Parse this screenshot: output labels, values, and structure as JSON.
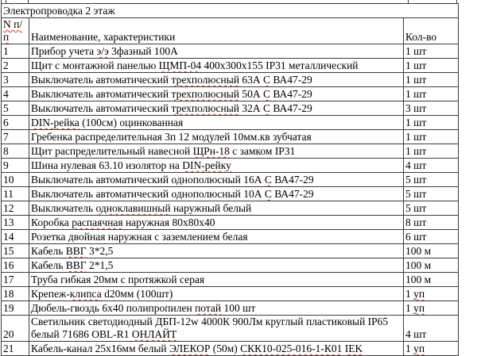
{
  "table": {
    "title": "Электропроводка 2 этаж",
    "columns": {
      "num": "N п/п",
      "name": "Наименование, характеристики",
      "qty": "Кол-во"
    },
    "rows": [
      {
        "num": "1",
        "name": "Прибор учета э/э 3фазный 100А",
        "qty": "1 шт"
      },
      {
        "num": "2",
        "name": "Щит с монтажной панелью ЩМП-04 400x300x155 IP31 металлический",
        "qty": "1 шт"
      },
      {
        "num": "3",
        "name": "Выключатель автоматический трехполюсный 63А С ВА47-29",
        "qty": "1 шт"
      },
      {
        "num": "4",
        "name": "Выключатель автоматический трехполюсный 50А С ВА47-29",
        "qty": "1 шт"
      },
      {
        "num": "5",
        "name": "Выключатель автоматический трехполюсный 32А С ВА47-29",
        "qty": "3 шт"
      },
      {
        "num": "6",
        "name": "DIN-рейка (100см) оцинкованная",
        "qty": "1 шт"
      },
      {
        "num": "7",
        "name": "Гребенка распределительная 3п 12 модулей 10мм.кв зубчатая",
        "qty": "1 шт"
      },
      {
        "num": "8",
        "name": "Щит распределительный навесной ЩРн-18 с замком IP31",
        "qty": "1 шт"
      },
      {
        "num": "9",
        "name": "Шина нулевая 63.10 изолятор на DIN-рейку",
        "qty": "4 шт"
      },
      {
        "num": "10",
        "name": "Выключатель автоматический однополюсный 16А С ВА47-29",
        "qty": "5 шт"
      },
      {
        "num": "11",
        "name": "Выключатель автоматический однополюсный 10А С ВА47-29",
        "qty": "5 шт"
      },
      {
        "num": "12",
        "name": "Выключатель одноклавишный наружный белый",
        "qty": "5 шт"
      },
      {
        "num": "13",
        "name": "Коробка распаячная наружная 80x80x40",
        "qty": "8 шт"
      },
      {
        "num": "14",
        "name": "Розетка двойная наружная с заземлением белая",
        "qty": "6 шт"
      },
      {
        "num": "15",
        "name": "Кабель ВВГ 3*2,5",
        "qty": "100 м"
      },
      {
        "num": "16",
        "name": "Кабель ВВГ 2*1,5",
        "qty": "100 м"
      },
      {
        "num": "17",
        "name": "Труба гибкая 20мм с протяжкой серая",
        "qty": "100 м"
      },
      {
        "num": "18",
        "name": "Крепеж-клипса d20мм (100шт)",
        "qty": "1 уп"
      },
      {
        "num": "19",
        "name": "Дюбель-гвоздь 6x40 полипропилен потай 100 шт",
        "qty": "1 уп"
      },
      {
        "num": "20",
        "name": "Светильник светодиодный ДБП-12w 4000К 900Лм круглый пластиковый IP65 белый 71686 OBL-R1 ОНЛАЙТ",
        "qty": "4 шт"
      },
      {
        "num": "21",
        "name": "Кабель-канал 25x16мм белый ЭЛЕКОР (50м) СКК10-025-016-1-К01 IEK",
        "qty": "1 уп"
      }
    ]
  },
  "spellcheck": {
    "color": "#d43a2f",
    "words": [
      "N п/п",
      "СКК10-025-016-1-К01",
      "DIN-рейка",
      "DIN-рейку",
      "трехполюсный",
      "одноклавишный",
      "распаячная",
      "ЩМП-04",
      "ЩРн-18",
      "ОНЛАЙТ",
      "ЭЛЕКОР",
      "клипса",
      "потай",
      "э/э",
      "ВВГ",
      "IEK",
      "уп",
      "С"
    ]
  },
  "colors": {
    "border": "#3c3c3c",
    "text": "#000000",
    "background": "#ffffff"
  }
}
